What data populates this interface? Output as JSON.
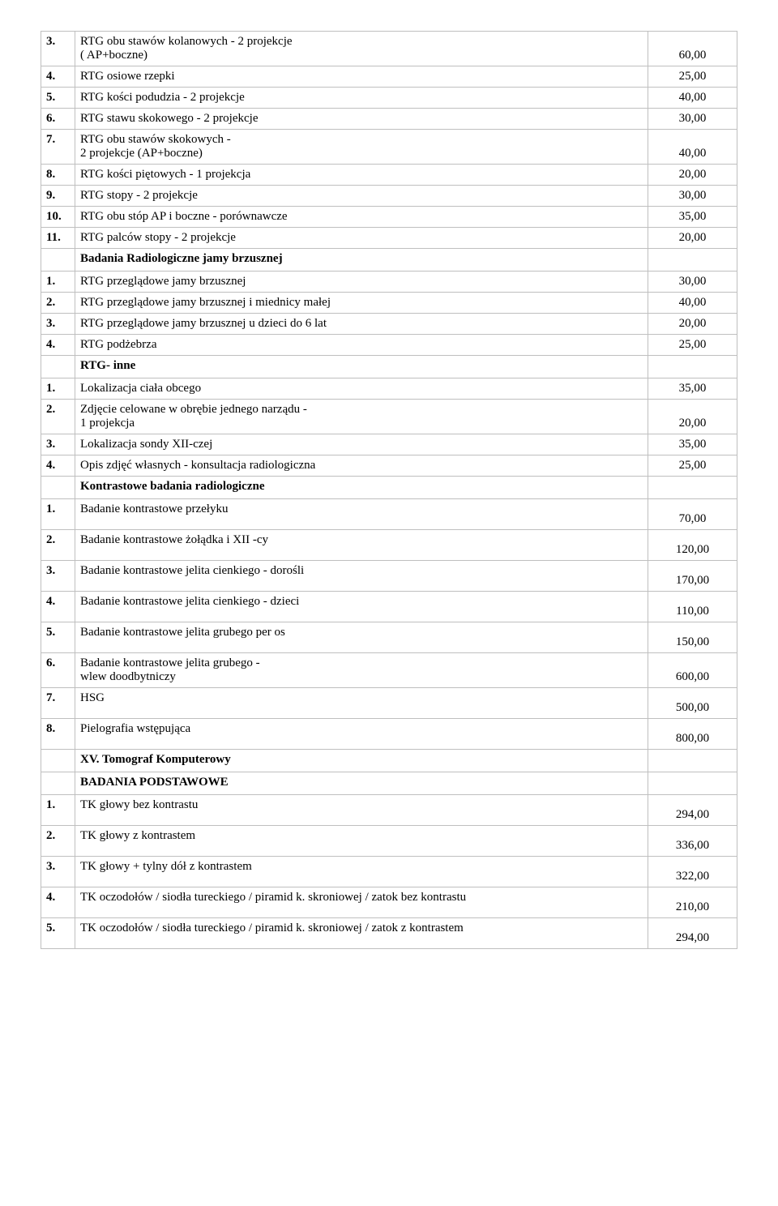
{
  "rows": [
    {
      "num": "3.",
      "desc": "RTG  obu stawów  kolanowych  - 2 projekcje\n( AP+boczne)",
      "price": "60,00"
    },
    {
      "num": "4.",
      "desc": "RTG  osiowe rzepki",
      "price": "25,00"
    },
    {
      "num": "5.",
      "desc": "RTG  kości podudzia - 2 projekcje",
      "price": "40,00"
    },
    {
      "num": "6.",
      "desc": "RTG  stawu skokowego - 2 projekcje",
      "price": "30,00"
    },
    {
      "num": "7.",
      "desc": "RTG  obu stawów skokowych  -\n 2 projekcje (AP+boczne)",
      "price": "40,00"
    },
    {
      "num": "8.",
      "desc": "RTG  kości piętowych  - 1 projekcja",
      "price": "20,00"
    },
    {
      "num": "9.",
      "desc": "RTG   stopy - 2 projekcje",
      "price": "30,00"
    },
    {
      "num": "10.",
      "desc": "RTG  obu stóp AP i boczne - porównawcze",
      "price": "35,00"
    },
    {
      "num": "11.",
      "desc": "RTG palców stopy - 2 projekcje",
      "price": "20,00"
    },
    {
      "section": true,
      "desc": "Badania Radiologiczne jamy brzusznej",
      "padBottom": true
    },
    {
      "num": "1.",
      "desc": "RTG przeglądowe jamy brzusznej",
      "price": "30,00"
    },
    {
      "num": "2.",
      "desc": "RTG przeglądowe jamy brzusznej i miednicy małej",
      "price": "40,00"
    },
    {
      "num": "3.",
      "desc": "RTG przeglądowe jamy brzusznej u dzieci do 6 lat",
      "price": "20,00"
    },
    {
      "num": "4.",
      "desc": "RTG podżebrza",
      "price": "25,00"
    },
    {
      "section": true,
      "desc": "RTG- inne",
      "padBottom": true
    },
    {
      "num": "1.",
      "desc": "Lokalizacja ciała obcego",
      "price": "35,00"
    },
    {
      "num": "2.",
      "desc": "Zdjęcie celowane w obrębie jednego narządu -\n1 projekcja",
      "price": "20,00"
    },
    {
      "num": "3.",
      "desc": "Lokalizacja sondy XII-czej",
      "price": "35,00"
    },
    {
      "num": "4.",
      "desc": "Opis zdjęć własnych  - konsultacja radiologiczna",
      "price": "25,00"
    },
    {
      "section": true,
      "desc": "Kontrastowe badania radiologiczne",
      "padBottom": true
    },
    {
      "num": "1.",
      "desc": "Badanie kontrastowe przełyku",
      "price": "70,00",
      "padTop": true
    },
    {
      "num": "2.",
      "desc": "Badanie kontrastowe żołądka i XII -cy",
      "price": "120,00",
      "padTop": true
    },
    {
      "num": "3.",
      "desc": "Badanie kontrastowe jelita cienkiego - dorośli",
      "price": "170,00",
      "padTop": true
    },
    {
      "num": "4.",
      "desc": "Badanie kontrastowe jelita cienkiego - dzieci",
      "price": "110,00",
      "padTop": true
    },
    {
      "num": "5.",
      "desc": "Badanie kontrastowe jelita grubego per os",
      "price": "150,00",
      "padTop": true
    },
    {
      "num": "6.",
      "desc": "Badanie kontrastowe jelita grubego -\n wlew doodbytniczy",
      "price": "600,00"
    },
    {
      "num": "7.",
      "desc": "HSG",
      "price": "500,00",
      "padTop": true
    },
    {
      "num": "8.",
      "desc": "Pielografia wstępująca",
      "price": "800,00",
      "padTop": true
    },
    {
      "section": true,
      "desc": "XV. Tomograf Komputerowy",
      "padTop": true,
      "padBottom": true
    },
    {
      "section": true,
      "desc": "BADANIA PODSTAWOWE",
      "padBottom": true
    },
    {
      "num": "1.",
      "desc": "TK głowy bez kontrastu",
      "price": "294,00",
      "padTop": true
    },
    {
      "num": "2.",
      "desc": "TK głowy z kontrastem",
      "price": "336,00",
      "padTop": true
    },
    {
      "num": "3.",
      "desc": "TK głowy + tylny dół z kontrastem",
      "price": "322,00",
      "padTop": true
    },
    {
      "num": "4.",
      "desc": "TK oczodołów / siodła tureckiego / piramid k. skroniowej / zatok bez kontrastu",
      "price": "210,00",
      "padTop": true
    },
    {
      "num": "5.",
      "desc": "TK oczodołów / siodła tureckiego / piramid k. skroniowej / zatok z kontrastem",
      "price": "294,00",
      "padTop": true
    }
  ]
}
